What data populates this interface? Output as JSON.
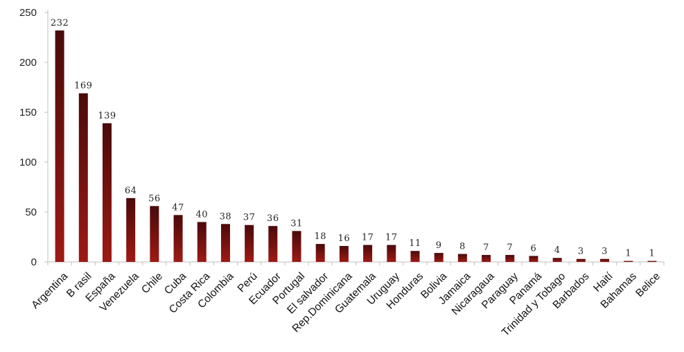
{
  "chart_data": {
    "type": "bar",
    "categories": [
      "Argentina",
      "B rasil",
      "España",
      "Venezuela",
      "Chile",
      "Cuba",
      "Costa Rica",
      "Colombia",
      "Perú",
      "Ecuador",
      "Portugal",
      "El salvador",
      "Rep.Dominicana",
      "Guatemala",
      "Uruguay",
      "Honduras",
      "Bolivia",
      "Jamaica",
      "Nicaragaua",
      "Paraguay",
      "Panamá",
      "Trinidad y Tobago",
      "Barbados",
      "Haití",
      "Bahamas",
      "Belice"
    ],
    "values": [
      232,
      169,
      139,
      64,
      56,
      47,
      40,
      38,
      37,
      36,
      31,
      18,
      16,
      17,
      17,
      11,
      9,
      8,
      7,
      7,
      6,
      4,
      3,
      3,
      1,
      1
    ],
    "ylim": [
      0,
      250
    ],
    "yticks": [
      0,
      50,
      100,
      150,
      200,
      250
    ],
    "title": "",
    "xlabel": "",
    "ylabel": "",
    "grid": false,
    "legend": "none",
    "bar_color_dark": "#4a0a0a",
    "bar_color_light": "#9e1a14",
    "axis_color": "#bfbfbf"
  }
}
